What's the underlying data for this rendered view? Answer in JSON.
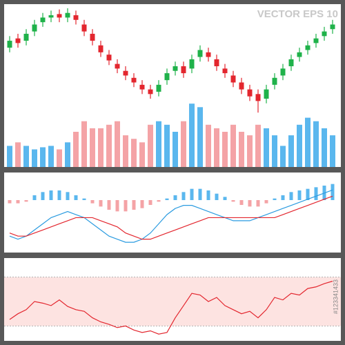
{
  "chart_data": [
    {
      "type": "candlestick",
      "watermark": "VECTOR EPS 10",
      "open": [
        66,
        74,
        72,
        80,
        88,
        92,
        95,
        92,
        94,
        86,
        78,
        68,
        60,
        52,
        46,
        40,
        34,
        30,
        28,
        38,
        46,
        50,
        48,
        58,
        62,
        56,
        48,
        42,
        36,
        30,
        26,
        22,
        34,
        42,
        50,
        58,
        64,
        70,
        76,
        82
      ],
      "close": [
        72,
        70,
        78,
        86,
        92,
        94,
        92,
        96,
        90,
        80,
        72,
        62,
        55,
        48,
        42,
        36,
        30,
        26,
        34,
        44,
        50,
        44,
        56,
        64,
        58,
        50,
        44,
        36,
        30,
        24,
        20,
        30,
        40,
        48,
        56,
        62,
        68,
        74,
        80,
        86
      ],
      "high": [
        76,
        78,
        82,
        90,
        96,
        98,
        99,
        100,
        98,
        90,
        82,
        72,
        64,
        56,
        50,
        44,
        38,
        34,
        38,
        48,
        54,
        54,
        60,
        68,
        66,
        60,
        52,
        46,
        40,
        34,
        30,
        34,
        44,
        52,
        60,
        66,
        72,
        78,
        84,
        90
      ],
      "low": [
        62,
        66,
        68,
        76,
        84,
        88,
        88,
        88,
        86,
        76,
        68,
        58,
        51,
        44,
        38,
        32,
        26,
        22,
        24,
        34,
        42,
        40,
        44,
        54,
        54,
        46,
        40,
        32,
        26,
        20,
        10,
        18,
        30,
        38,
        46,
        54,
        60,
        66,
        72,
        78
      ],
      "volume": [
        30,
        35,
        30,
        25,
        28,
        30,
        25,
        35,
        50,
        65,
        55,
        55,
        60,
        65,
        45,
        40,
        35,
        60,
        65,
        60,
        50,
        65,
        90,
        85,
        60,
        55,
        50,
        60,
        50,
        45,
        60,
        55,
        45,
        30,
        45,
        60,
        70,
        65,
        55,
        45
      ],
      "ylim": [
        0,
        100
      ],
      "volume_ylim": [
        0,
        100
      ],
      "up_color": "#1fb24a",
      "down_color": "#e3262e",
      "volume_up_color": "#5ab7ee",
      "volume_down_color": "#f4a3a6"
    },
    {
      "type": "macd",
      "histogram": [
        -2,
        -2,
        -1,
        3,
        5,
        6,
        6,
        5,
        3,
        1,
        -2,
        -4,
        -6,
        -7,
        -7,
        -6,
        -5,
        -3,
        -1,
        1,
        3,
        5,
        7,
        7,
        6,
        4,
        2,
        -1,
        -3,
        -4,
        -4,
        -2,
        1,
        3,
        5,
        6,
        7,
        8,
        9,
        10
      ],
      "hist_ylim": [
        -12,
        12
      ],
      "up_color": "#5ab7ee",
      "down_color": "#f4a3a6",
      "ylim": [
        -10,
        12
      ],
      "series": [
        {
          "color": "#2a9be0",
          "values": [
            -6,
            -7,
            -6,
            -4,
            -2,
            0,
            1,
            2,
            1,
            0,
            -2,
            -4,
            -6,
            -7,
            -8,
            -8,
            -7,
            -5,
            -2,
            1,
            3,
            4,
            4,
            3,
            2,
            1,
            0,
            -1,
            -1,
            -1,
            0,
            1,
            2,
            3,
            4,
            5,
            6,
            7,
            8,
            9
          ]
        },
        {
          "color": "#e3262e",
          "values": [
            -5,
            -6,
            -6,
            -5,
            -4,
            -3,
            -2,
            -1,
            0,
            0,
            0,
            -1,
            -2,
            -3,
            -5,
            -6,
            -7,
            -7,
            -6,
            -5,
            -4,
            -3,
            -2,
            -1,
            0,
            0,
            0,
            0,
            0,
            0,
            0,
            0,
            0,
            1,
            2,
            3,
            4,
            5,
            6,
            7
          ]
        }
      ]
    },
    {
      "type": "rsi",
      "side_label": "#123341433",
      "values": [
        28,
        35,
        40,
        50,
        48,
        45,
        52,
        44,
        40,
        38,
        30,
        25,
        22,
        18,
        20,
        15,
        12,
        14,
        10,
        12,
        30,
        45,
        60,
        58,
        50,
        55,
        45,
        40,
        35,
        38,
        30,
        40,
        55,
        52,
        60,
        58,
        66,
        68,
        72,
        75
      ],
      "color": "#e3262e",
      "ylim": [
        0,
        100
      ],
      "bands": [
        20,
        80
      ],
      "band_color": "#fde3e1"
    }
  ]
}
